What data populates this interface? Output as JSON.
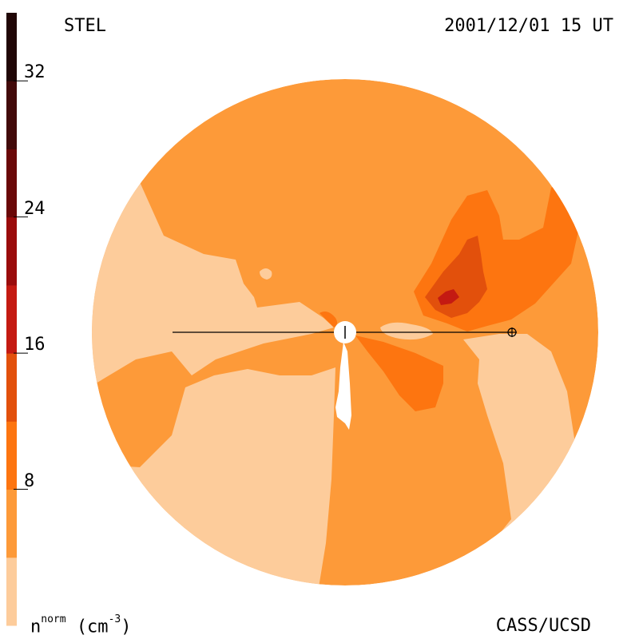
{
  "header": {
    "model_label": "STEL",
    "datetime": "2001/12/01 15 UT"
  },
  "footer": {
    "credit": "CASS/UCSD",
    "unit_var": "n",
    "unit_sup": "norm",
    "unit_paren": "(cm",
    "unit_exp": "-3",
    "unit_close": ")"
  },
  "colorbar": {
    "ticks": [
      {
        "value": 32,
        "label": "32"
      },
      {
        "value": 24,
        "label": "24"
      },
      {
        "value": 16,
        "label": "16"
      },
      {
        "value": 8,
        "label": "8"
      }
    ],
    "range": [
      0,
      36
    ],
    "levels": [
      {
        "from": 0,
        "to": 4,
        "color": "#fdcc9b"
      },
      {
        "from": 4,
        "to": 8,
        "color": "#fd9a39"
      },
      {
        "from": 8,
        "to": 12,
        "color": "#fd7510"
      },
      {
        "from": 12,
        "to": 16,
        "color": "#e2500c"
      },
      {
        "from": 16,
        "to": 20,
        "color": "#c41a12"
      },
      {
        "from": 20,
        "to": 24,
        "color": "#9a0c0c"
      },
      {
        "from": 24,
        "to": 28,
        "color": "#6a0808"
      },
      {
        "from": 28,
        "to": 32,
        "color": "#420a0a"
      },
      {
        "from": 32,
        "to": 36,
        "color": "#200606"
      }
    ]
  },
  "map": {
    "background_color": "#fd9a39",
    "light_color": "#fdcc9b",
    "medium_color": "#fd7510",
    "high_color": "#e2500c",
    "peak_color": "#c41a12",
    "sun_color": "#ffffff",
    "line_color": "#000000"
  }
}
